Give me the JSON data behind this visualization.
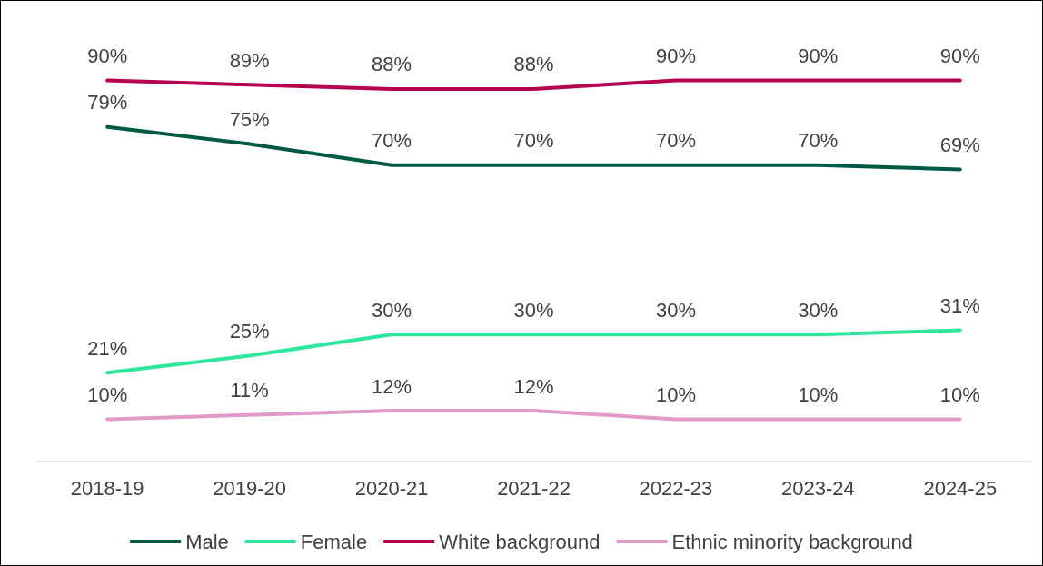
{
  "chart_data": {
    "type": "line",
    "categories": [
      "2018-19",
      "2019-20",
      "2020-21",
      "2021-22",
      "2022-23",
      "2023-24",
      "2024-25"
    ],
    "series": [
      {
        "name": "Male",
        "color": "#005a43",
        "values": [
          79,
          75,
          70,
          70,
          70,
          70,
          69
        ],
        "value_labels": [
          "79%",
          "75%",
          "70%",
          "70%",
          "70%",
          "70%",
          "69%"
        ]
      },
      {
        "name": "Female",
        "color": "#2ee59e",
        "values": [
          21,
          25,
          30,
          30,
          30,
          30,
          31
        ],
        "value_labels": [
          "21%",
          "25%",
          "30%",
          "30%",
          "30%",
          "30%",
          "31%"
        ]
      },
      {
        "name": "White background",
        "color": "#b80050",
        "values": [
          90,
          89,
          88,
          88,
          90,
          90,
          90
        ],
        "value_labels": [
          "90%",
          "89%",
          "88%",
          "88%",
          "90%",
          "90%",
          "90%"
        ]
      },
      {
        "name": "Ethnic minority background",
        "color": "#e19ac8",
        "values": [
          10,
          11,
          12,
          12,
          10,
          10,
          10
        ],
        "value_labels": [
          "10%",
          "11%",
          "12%",
          "12%",
          "10%",
          "10%",
          "10%"
        ]
      }
    ],
    "tick_labels": "x",
    "grid": false,
    "legend": "bottom",
    "marker": "none",
    "line_style": "solid"
  }
}
